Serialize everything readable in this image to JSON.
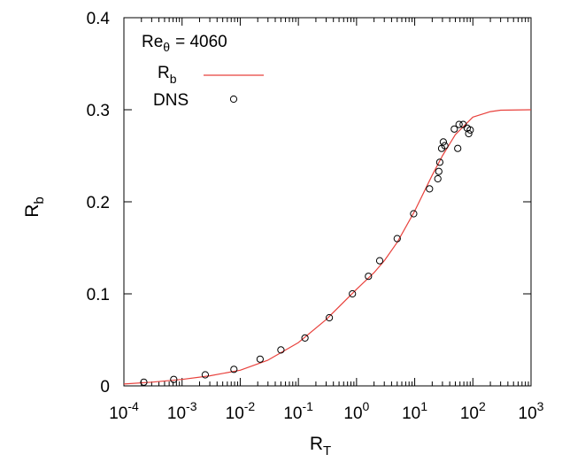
{
  "chart_data": {
    "type": "scatter",
    "annotation": {
      "main": "Re",
      "sub": "θ",
      "value": "= 4060"
    },
    "xlabel": {
      "main": "R",
      "sub": "T"
    },
    "ylabel": {
      "main": "R",
      "sub": "b"
    },
    "x_scale": "log",
    "xlim": [
      0.0001,
      1000
    ],
    "ylim": [
      0,
      0.4
    ],
    "x_ticks": [
      {
        "value": 0.0001,
        "base": "10",
        "exp": "-4"
      },
      {
        "value": 0.001,
        "base": "10",
        "exp": "-3"
      },
      {
        "value": 0.01,
        "base": "10",
        "exp": "-2"
      },
      {
        "value": 0.1,
        "base": "10",
        "exp": "-1"
      },
      {
        "value": 1,
        "base": "10",
        "exp": "0"
      },
      {
        "value": 10,
        "base": "10",
        "exp": "1"
      },
      {
        "value": 100,
        "base": "10",
        "exp": "2"
      },
      {
        "value": 1000,
        "base": "10",
        "exp": "3"
      }
    ],
    "y_ticks": [
      {
        "value": 0,
        "label": "0"
      },
      {
        "value": 0.1,
        "label": "0.1"
      },
      {
        "value": 0.2,
        "label": "0.2"
      },
      {
        "value": 0.3,
        "label": "0.3"
      },
      {
        "value": 0.4,
        "label": "0.4"
      }
    ],
    "legend_position": "top-left",
    "grid": false,
    "series": [
      {
        "name": "R",
        "name_sub": "b",
        "kind": "line",
        "color": "#e8413c",
        "x": [
          0.0001,
          0.0003,
          0.001,
          0.003,
          0.01,
          0.03,
          0.1,
          0.3,
          1,
          2,
          3,
          5,
          10,
          20,
          30,
          50,
          100,
          200,
          300,
          1000
        ],
        "y": [
          0.002,
          0.004,
          0.007,
          0.011,
          0.017,
          0.028,
          0.047,
          0.072,
          0.105,
          0.123,
          0.136,
          0.156,
          0.19,
          0.229,
          0.25,
          0.273,
          0.292,
          0.298,
          0.2995,
          0.3
        ]
      },
      {
        "name": "DNS",
        "kind": "scatter",
        "color": "#000000",
        "x": [
          0.00022,
          0.00072,
          0.0025,
          0.0078,
          0.022,
          0.05,
          0.13,
          0.34,
          0.85,
          1.6,
          2.5,
          5.0,
          9.6,
          18.0,
          25.0,
          26.0,
          27.0,
          29.0,
          31.0,
          33.0,
          48.0,
          55.0,
          58.0,
          68.0,
          80.0,
          85.0,
          90.0
        ],
        "y": [
          0.004,
          0.007,
          0.012,
          0.018,
          0.029,
          0.039,
          0.052,
          0.074,
          0.1,
          0.119,
          0.136,
          0.16,
          0.187,
          0.214,
          0.225,
          0.233,
          0.243,
          0.258,
          0.265,
          0.261,
          0.279,
          0.258,
          0.284,
          0.284,
          0.28,
          0.274,
          0.278
        ]
      }
    ]
  }
}
